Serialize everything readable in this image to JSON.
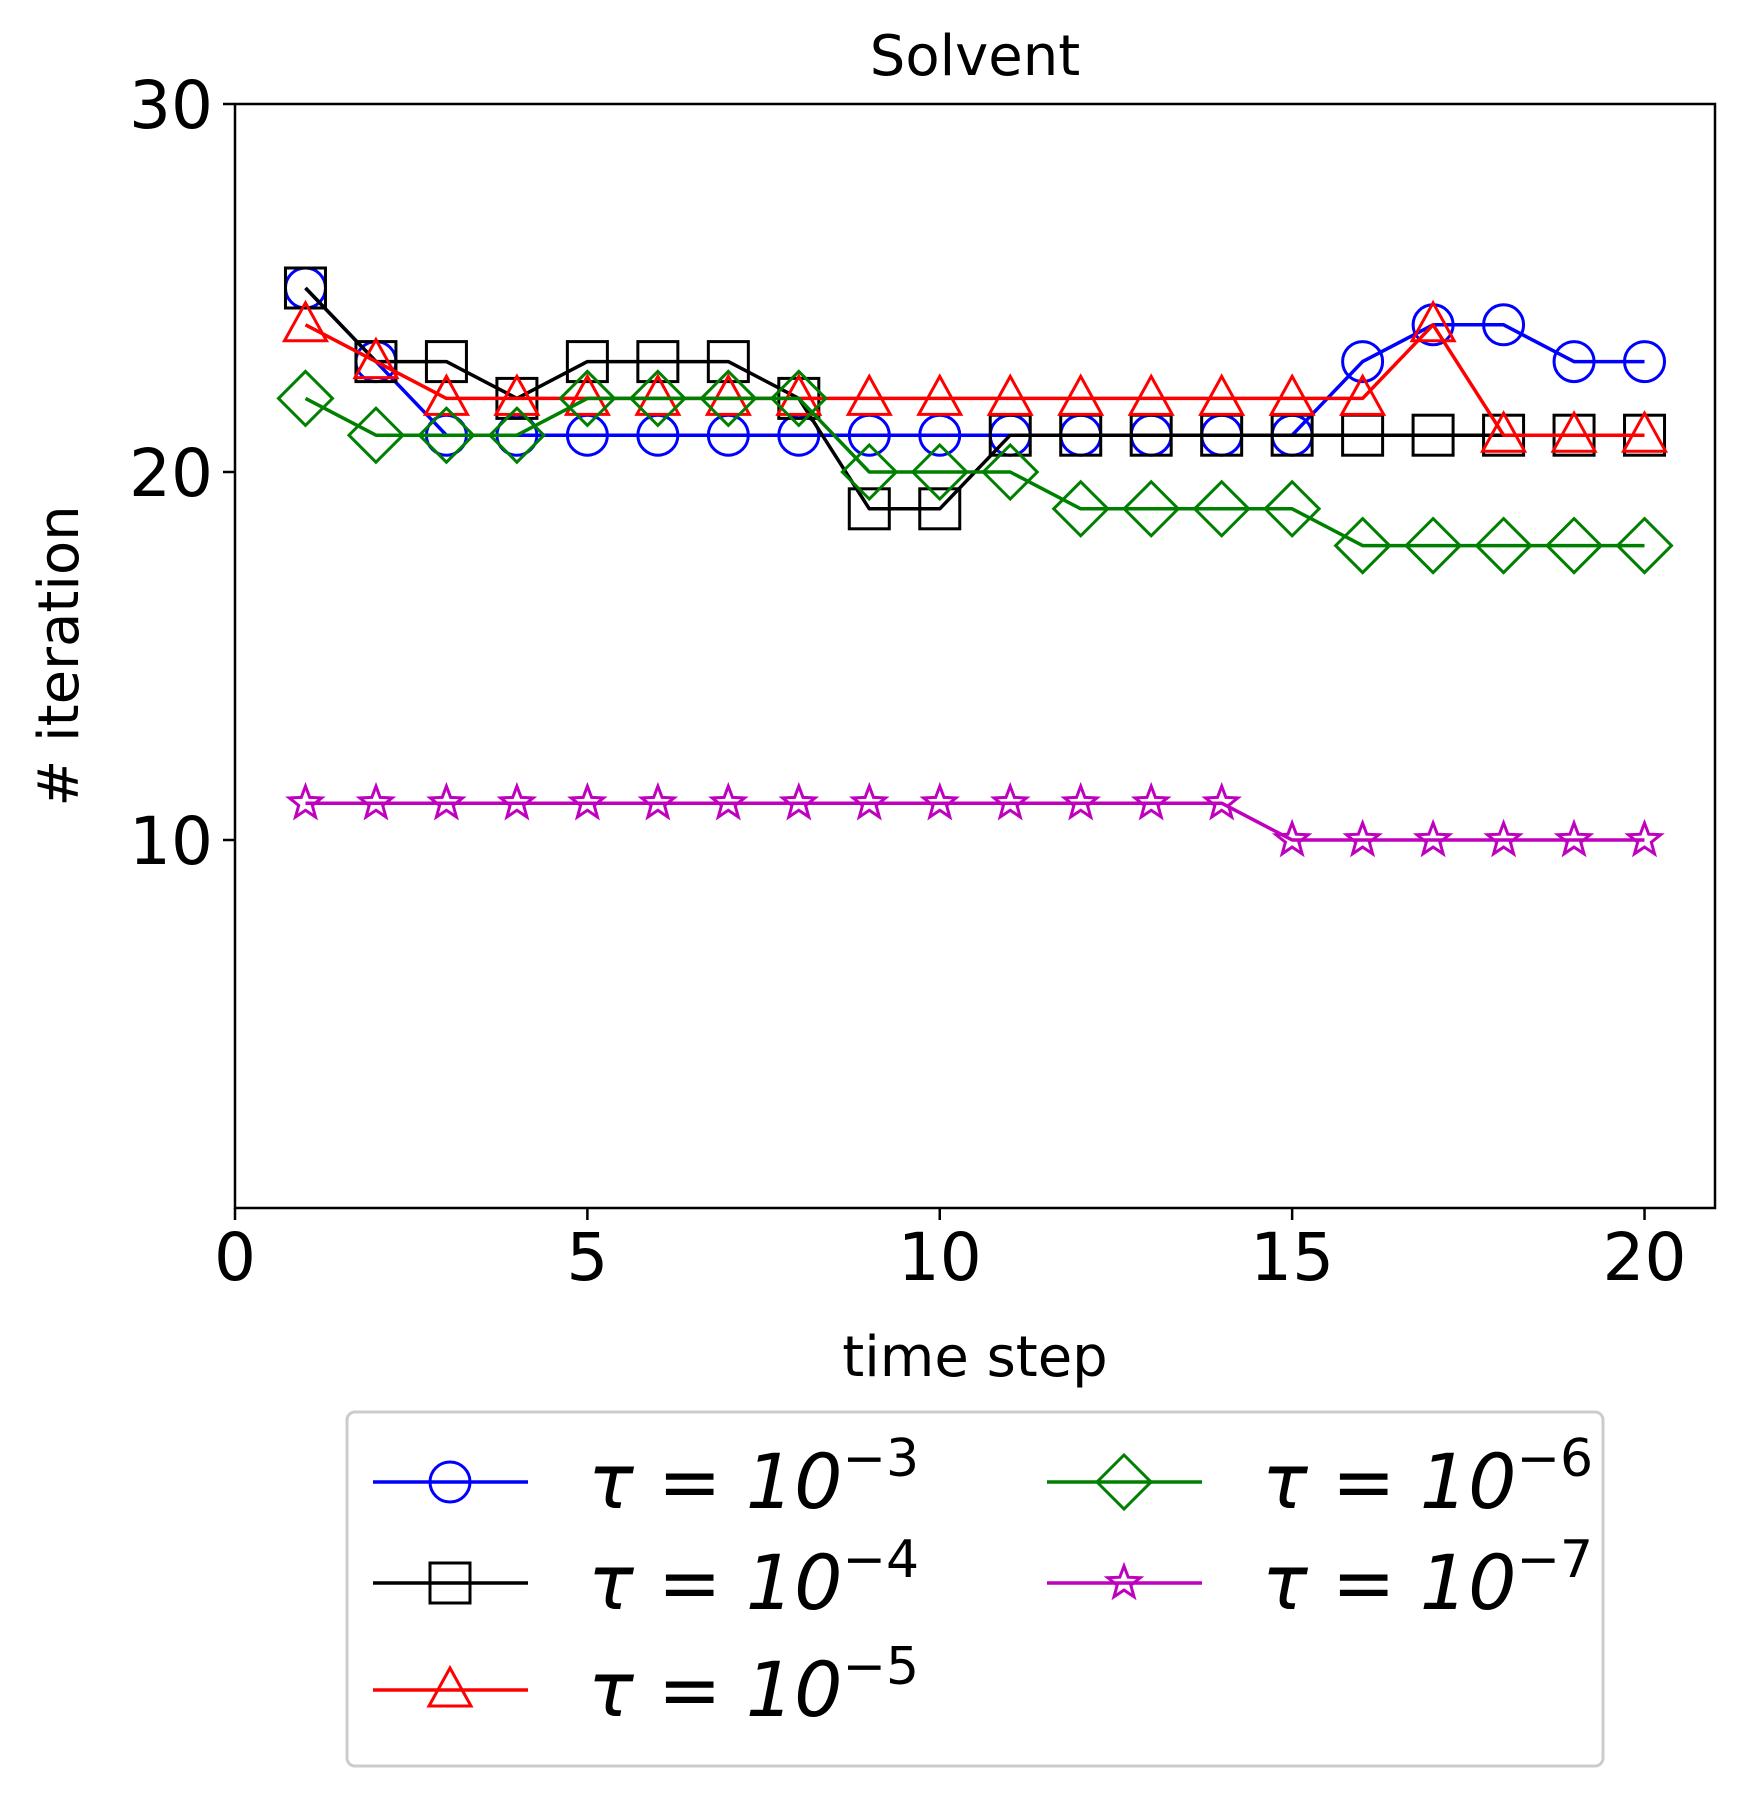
{
  "chart_data": {
    "type": "line",
    "title": "Solvent",
    "xlabel": "time step",
    "ylabel": "# iteration",
    "xlim": [
      0,
      21
    ],
    "ylim": [
      0,
      30
    ],
    "xticks": [
      "0",
      "5",
      "10",
      "15",
      "20"
    ],
    "yticks": [
      "10",
      "20",
      "30"
    ],
    "legend_position": "bottom",
    "x": [
      1,
      2,
      3,
      4,
      5,
      6,
      7,
      8,
      9,
      10,
      11,
      12,
      13,
      14,
      15,
      16,
      17,
      18,
      19,
      20
    ],
    "series": [
      {
        "name": "τ = 10⁻³",
        "label_base": "τ = 10",
        "label_exp": "−3",
        "color": "#0000ff",
        "marker": "circle",
        "values": [
          25,
          23,
          21,
          21,
          21,
          21,
          21,
          21,
          21,
          21,
          21,
          21,
          21,
          21,
          21,
          23,
          24,
          24,
          23,
          23
        ]
      },
      {
        "name": "τ = 10⁻⁴",
        "label_base": "τ = 10",
        "label_exp": "−4",
        "color": "#000000",
        "marker": "square",
        "values": [
          25,
          23,
          23,
          22,
          23,
          23,
          23,
          22,
          19,
          19,
          21,
          21,
          21,
          21,
          21,
          21,
          21,
          21,
          21,
          21
        ]
      },
      {
        "name": "τ = 10⁻⁵",
        "label_base": "τ = 10",
        "label_exp": "−5",
        "color": "#ff0000",
        "marker": "triangle",
        "values": [
          24,
          23,
          22,
          22,
          22,
          22,
          22,
          22,
          22,
          22,
          22,
          22,
          22,
          22,
          22,
          22,
          24,
          21,
          21,
          21
        ]
      },
      {
        "name": "τ = 10⁻⁶",
        "label_base": "τ = 10",
        "label_exp": "−6",
        "color": "#008000",
        "marker": "diamond",
        "values": [
          22,
          21,
          21,
          21,
          22,
          22,
          22,
          22,
          20,
          20,
          20,
          19,
          19,
          19,
          19,
          18,
          18,
          18,
          18,
          18
        ]
      },
      {
        "name": "τ = 10⁻⁷",
        "label_base": "τ = 10",
        "label_exp": "−7",
        "color": "#bf00bf",
        "marker": "star",
        "values": [
          11,
          11,
          11,
          11,
          11,
          11,
          11,
          11,
          11,
          11,
          11,
          11,
          11,
          11,
          10,
          10,
          10,
          10,
          10,
          10
        ]
      }
    ]
  }
}
